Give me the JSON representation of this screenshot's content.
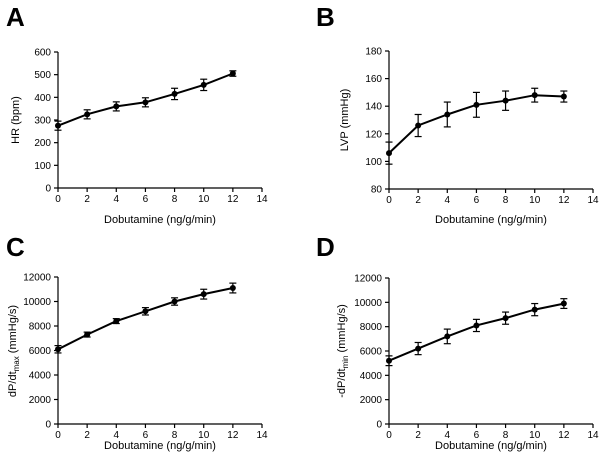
{
  "figure": {
    "panel_labels": [
      "A",
      "B",
      "C",
      "D"
    ]
  },
  "chart_data": [
    {
      "type": "line",
      "panel": "A",
      "xlabel": "Dobutamine (ng/g/min)",
      "ylabel": "HR (bpm)",
      "xlim": [
        0,
        14
      ],
      "ylim": [
        0,
        600
      ],
      "x_ticks": [
        "0",
        "2",
        "4",
        "6",
        "8",
        "10",
        "12",
        "14"
      ],
      "y_ticks": [
        "0",
        "100",
        "200",
        "300",
        "400",
        "500",
        "600"
      ],
      "series": [
        {
          "name": "HR",
          "x": [
            0,
            2,
            4,
            6,
            8,
            10,
            12
          ],
          "y": [
            275,
            325,
            360,
            378,
            415,
            455,
            505
          ],
          "error": [
            20,
            20,
            20,
            20,
            25,
            25,
            12
          ]
        }
      ]
    },
    {
      "type": "line",
      "panel": "B",
      "xlabel": "Dobutamine (ng/g/min)",
      "ylabel": "LVP (mmHg)",
      "xlim": [
        0,
        14
      ],
      "ylim": [
        80,
        180
      ],
      "x_ticks": [
        "0",
        "2",
        "4",
        "6",
        "8",
        "10",
        "12",
        "14"
      ],
      "y_ticks": [
        "80",
        "100",
        "120",
        "140",
        "160",
        "180"
      ],
      "series": [
        {
          "name": "LVP",
          "x": [
            0,
            2,
            4,
            6,
            8,
            10,
            12
          ],
          "y": [
            106,
            126,
            134,
            141,
            144,
            148,
            147
          ],
          "error": [
            8,
            8,
            9,
            9,
            7,
            5,
            4
          ]
        }
      ]
    },
    {
      "type": "line",
      "panel": "C",
      "xlabel": "Dobutamine (ng/g/min)",
      "ylabel_main": "dP/dt",
      "ylabel_sub": "max",
      "ylabel_tail": " (mmHg/s)",
      "xlim": [
        0,
        14
      ],
      "ylim": [
        0,
        12000
      ],
      "x_ticks": [
        "0",
        "2",
        "4",
        "6",
        "8",
        "10",
        "12",
        "14"
      ],
      "y_ticks": [
        "0",
        "2000",
        "4000",
        "6000",
        "8000",
        "10000",
        "12000"
      ],
      "series": [
        {
          "name": "dP/dt max",
          "x": [
            0,
            2,
            4,
            6,
            8,
            10,
            12
          ],
          "y": [
            6100,
            7300,
            8400,
            9200,
            10000,
            10600,
            11100
          ],
          "error": [
            300,
            200,
            200,
            300,
            300,
            400,
            400
          ]
        }
      ]
    },
    {
      "type": "line",
      "panel": "D",
      "xlabel": "Dobutamine (ng/g/min)",
      "ylabel_main": "-dP/dt",
      "ylabel_sub": "min",
      "ylabel_tail": " (mmHg/s)",
      "xlim": [
        0,
        14
      ],
      "ylim": [
        0,
        12000
      ],
      "x_ticks": [
        "0",
        "2",
        "4",
        "6",
        "8",
        "10",
        "12",
        "14"
      ],
      "y_ticks": [
        "0",
        "2000",
        "4000",
        "6000",
        "8000",
        "10000",
        "12000"
      ],
      "series": [
        {
          "name": "-dP/dt min",
          "x": [
            0,
            2,
            4,
            6,
            8,
            10,
            12
          ],
          "y": [
            5200,
            6200,
            7200,
            8100,
            8700,
            9400,
            9900
          ],
          "error": [
            400,
            500,
            600,
            500,
            500,
            500,
            400
          ]
        }
      ]
    }
  ]
}
